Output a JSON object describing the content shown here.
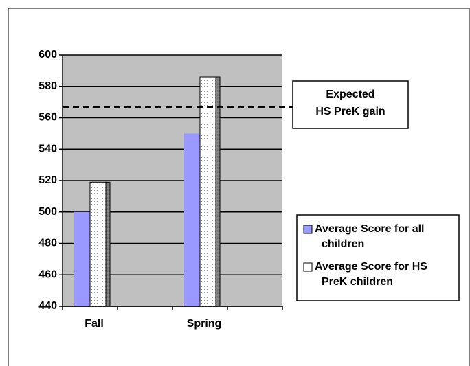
{
  "chart_data": {
    "type": "bar",
    "categories": [
      "Fall",
      "Spring"
    ],
    "series": [
      {
        "name": "Average Score for all children",
        "color": "#9999ff",
        "values": [
          500,
          550
        ]
      },
      {
        "name": "Average Score for HS PreK children",
        "color": "#ffffff",
        "values": [
          519,
          586
        ]
      }
    ],
    "ylim": [
      440,
      600
    ],
    "yticks": [
      440,
      460,
      480,
      500,
      520,
      540,
      560,
      580,
      600
    ],
    "grid": true,
    "annotation": {
      "text": [
        "Expected",
        "HS PreK gain"
      ],
      "value": 567
    },
    "legend": "right"
  }
}
